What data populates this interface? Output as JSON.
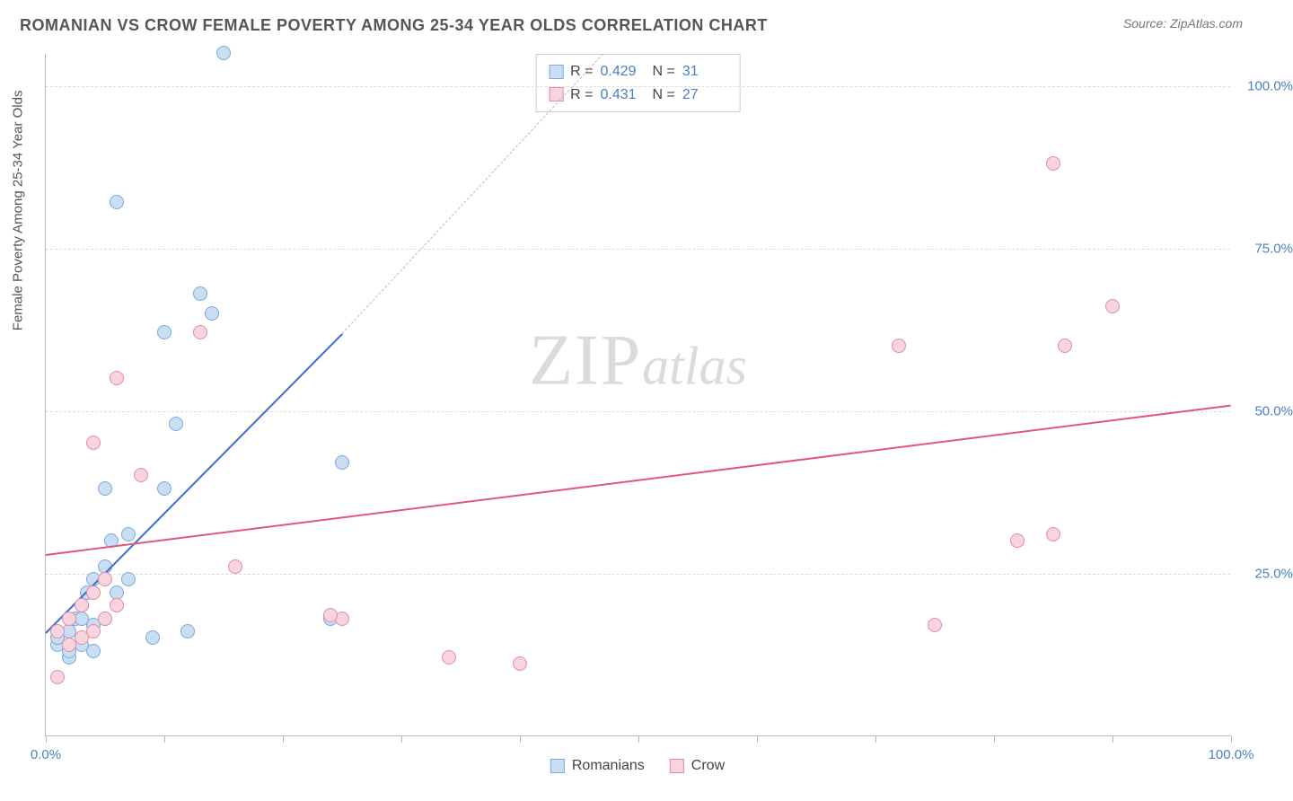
{
  "header": {
    "title": "ROMANIAN VS CROW FEMALE POVERTY AMONG 25-34 YEAR OLDS CORRELATION CHART",
    "source_label": "Source: ",
    "source_name": "ZipAtlas.com"
  },
  "watermark": {
    "zip": "ZIP",
    "atlas": "atlas"
  },
  "chart": {
    "type": "scatter",
    "y_axis_label": "Female Poverty Among 25-34 Year Olds",
    "xlim": [
      0,
      100
    ],
    "ylim": [
      0,
      105
    ],
    "x_ticks": [
      0,
      10,
      20,
      30,
      40,
      50,
      60,
      70,
      80,
      90,
      100
    ],
    "x_tick_labels": {
      "0": "0.0%",
      "100": "100.0%"
    },
    "y_gridlines": [
      25,
      50,
      75,
      100
    ],
    "y_tick_labels": {
      "25": "25.0%",
      "50": "50.0%",
      "75": "75.0%",
      "100": "100.0%"
    },
    "grid_color": "#dddddd",
    "axis_color": "#bbbbbb",
    "tick_label_color": "#4a7fc4",
    "background_color": "#ffffff",
    "series": [
      {
        "name": "Romanians",
        "fill": "#c9ddf3",
        "stroke": "#7aa9dd",
        "trend_color": "#3a6fcf",
        "r_value": "0.429",
        "n_value": "31",
        "points": [
          [
            1,
            14
          ],
          [
            1,
            15
          ],
          [
            2,
            12
          ],
          [
            2,
            16
          ],
          [
            2.5,
            18
          ],
          [
            3,
            14
          ],
          [
            3,
            20
          ],
          [
            3.5,
            22
          ],
          [
            4,
            13
          ],
          [
            4,
            17
          ],
          [
            4,
            24
          ],
          [
            5,
            18
          ],
          [
            5,
            26
          ],
          [
            5.5,
            30
          ],
          [
            5,
            38
          ],
          [
            6,
            22
          ],
          [
            7,
            24
          ],
          [
            7,
            31
          ],
          [
            9,
            15
          ],
          [
            10,
            38
          ],
          [
            10,
            62
          ],
          [
            11,
            48
          ],
          [
            12,
            16
          ],
          [
            13,
            68
          ],
          [
            14,
            65
          ],
          [
            15,
            105
          ],
          [
            6,
            82
          ],
          [
            24,
            18
          ],
          [
            25,
            42
          ],
          [
            3,
            18
          ],
          [
            2,
            13
          ]
        ],
        "trend": {
          "x1": 0,
          "y1": 16,
          "x2": 25,
          "y2": 62
        },
        "trend_dash": {
          "x1": 25,
          "y1": 62,
          "x2": 47,
          "y2": 105
        }
      },
      {
        "name": "Crow",
        "fill": "#f7d4de",
        "stroke": "#e48aa6",
        "trend_color": "#e3557f",
        "r_value": "0.431",
        "n_value": "27",
        "points": [
          [
            1,
            9
          ],
          [
            1,
            16
          ],
          [
            2,
            18
          ],
          [
            3,
            20
          ],
          [
            4,
            22
          ],
          [
            5,
            24
          ],
          [
            4,
            45
          ],
          [
            6,
            55
          ],
          [
            8,
            40
          ],
          [
            13,
            62
          ],
          [
            16,
            26
          ],
          [
            25,
            18
          ],
          [
            24,
            18.5
          ],
          [
            34,
            12
          ],
          [
            40,
            11
          ],
          [
            72,
            60
          ],
          [
            75,
            17
          ],
          [
            82,
            30
          ],
          [
            85,
            31
          ],
          [
            86,
            60
          ],
          [
            90,
            66
          ],
          [
            85,
            88
          ],
          [
            2,
            14
          ],
          [
            3,
            15
          ],
          [
            4,
            16
          ],
          [
            5,
            18
          ],
          [
            6,
            20
          ]
        ],
        "trend": {
          "x1": 0,
          "y1": 28,
          "x2": 100,
          "y2": 51
        }
      }
    ],
    "legend": {
      "r_label": "R =",
      "n_label": "N ="
    },
    "bottom_legend": [
      {
        "label": "Romanians",
        "fill": "#c9ddf3",
        "stroke": "#7aa9dd"
      },
      {
        "label": "Crow",
        "fill": "#f7d4de",
        "stroke": "#e48aa6"
      }
    ]
  }
}
